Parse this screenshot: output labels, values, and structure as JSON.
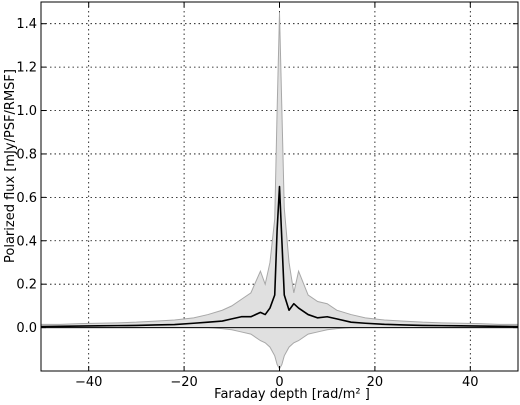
{
  "chart_data": {
    "type": "line",
    "xlabel": "Faraday depth [rad/m² ]",
    "ylabel": "Polarized flux [mJy/PSF/RMSF]",
    "xlim": [
      -50,
      50
    ],
    "ylim": [
      -0.2,
      1.5
    ],
    "xticks": [
      -40,
      -20,
      0,
      20,
      40
    ],
    "xtick_labels": [
      "−40",
      "−20",
      "0",
      "20",
      "40"
    ],
    "yticks": [
      0.0,
      0.2,
      0.4,
      0.6,
      0.8,
      1.0,
      1.2,
      1.4
    ],
    "ytick_labels": [
      "0.0",
      "0.2",
      "0.4",
      "0.6",
      "0.8",
      "1.0",
      "1.2",
      "1.4"
    ],
    "grid": true,
    "colors": {
      "line": "#000000",
      "band_fill": "#e0e0e0",
      "band_edge": "#a8a8a8",
      "zero_line": "#000000"
    },
    "series": [
      {
        "role": "median",
        "x": [
          -50,
          -46,
          -42,
          -38,
          -34,
          -30,
          -26,
          -22,
          -18,
          -15,
          -12,
          -10,
          -8,
          -6,
          -4,
          -3,
          -2,
          -1,
          -0.5,
          0,
          0.5,
          1,
          2,
          3,
          4,
          6,
          8,
          10,
          12,
          15,
          18,
          22,
          26,
          30,
          34,
          38,
          42,
          46,
          50
        ],
        "y": [
          0.005,
          0.006,
          0.007,
          0.008,
          0.009,
          0.01,
          0.012,
          0.014,
          0.02,
          0.025,
          0.03,
          0.04,
          0.05,
          0.05,
          0.07,
          0.06,
          0.09,
          0.15,
          0.45,
          0.65,
          0.4,
          0.15,
          0.08,
          0.11,
          0.09,
          0.06,
          0.045,
          0.05,
          0.04,
          0.025,
          0.02,
          0.015,
          0.012,
          0.01,
          0.009,
          0.008,
          0.007,
          0.006,
          0.005
        ]
      },
      {
        "role": "band-upper",
        "x": [
          -50,
          -46,
          -42,
          -38,
          -34,
          -30,
          -26,
          -22,
          -18,
          -15,
          -12,
          -10,
          -8,
          -6,
          -4,
          -3,
          -2,
          -1,
          -0.5,
          0,
          0.5,
          1,
          2,
          3,
          4,
          6,
          8,
          10,
          12,
          15,
          18,
          22,
          26,
          30,
          34,
          38,
          42,
          46,
          50
        ],
        "y": [
          0.015,
          0.015,
          0.018,
          0.02,
          0.022,
          0.025,
          0.03,
          0.035,
          0.045,
          0.06,
          0.08,
          0.1,
          0.13,
          0.16,
          0.26,
          0.2,
          0.3,
          0.5,
          1.0,
          1.45,
          1.0,
          0.55,
          0.3,
          0.16,
          0.26,
          0.15,
          0.12,
          0.11,
          0.08,
          0.06,
          0.045,
          0.035,
          0.03,
          0.025,
          0.022,
          0.02,
          0.018,
          0.015,
          0.015
        ]
      },
      {
        "role": "band-lower",
        "x": [
          -50,
          -46,
          -42,
          -38,
          -34,
          -30,
          -26,
          -22,
          -18,
          -15,
          -12,
          -10,
          -8,
          -6,
          -4,
          -3,
          -2,
          -1,
          -0.5,
          0,
          0.5,
          1,
          2,
          3,
          4,
          6,
          8,
          10,
          12,
          15,
          18,
          22,
          26,
          30,
          34,
          38,
          42,
          46,
          50
        ],
        "y": [
          0.0,
          0.0,
          0.0,
          0.0,
          0.0,
          0.0,
          0.0,
          0.0,
          0.0,
          0.0,
          -0.005,
          -0.01,
          -0.02,
          -0.03,
          -0.06,
          -0.07,
          -0.09,
          -0.13,
          -0.17,
          -0.19,
          -0.17,
          -0.13,
          -0.09,
          -0.07,
          -0.06,
          -0.03,
          -0.02,
          -0.01,
          -0.005,
          0.0,
          0.0,
          0.0,
          0.0,
          0.0,
          0.0,
          0.0,
          0.0,
          0.0,
          0.0
        ]
      }
    ]
  }
}
